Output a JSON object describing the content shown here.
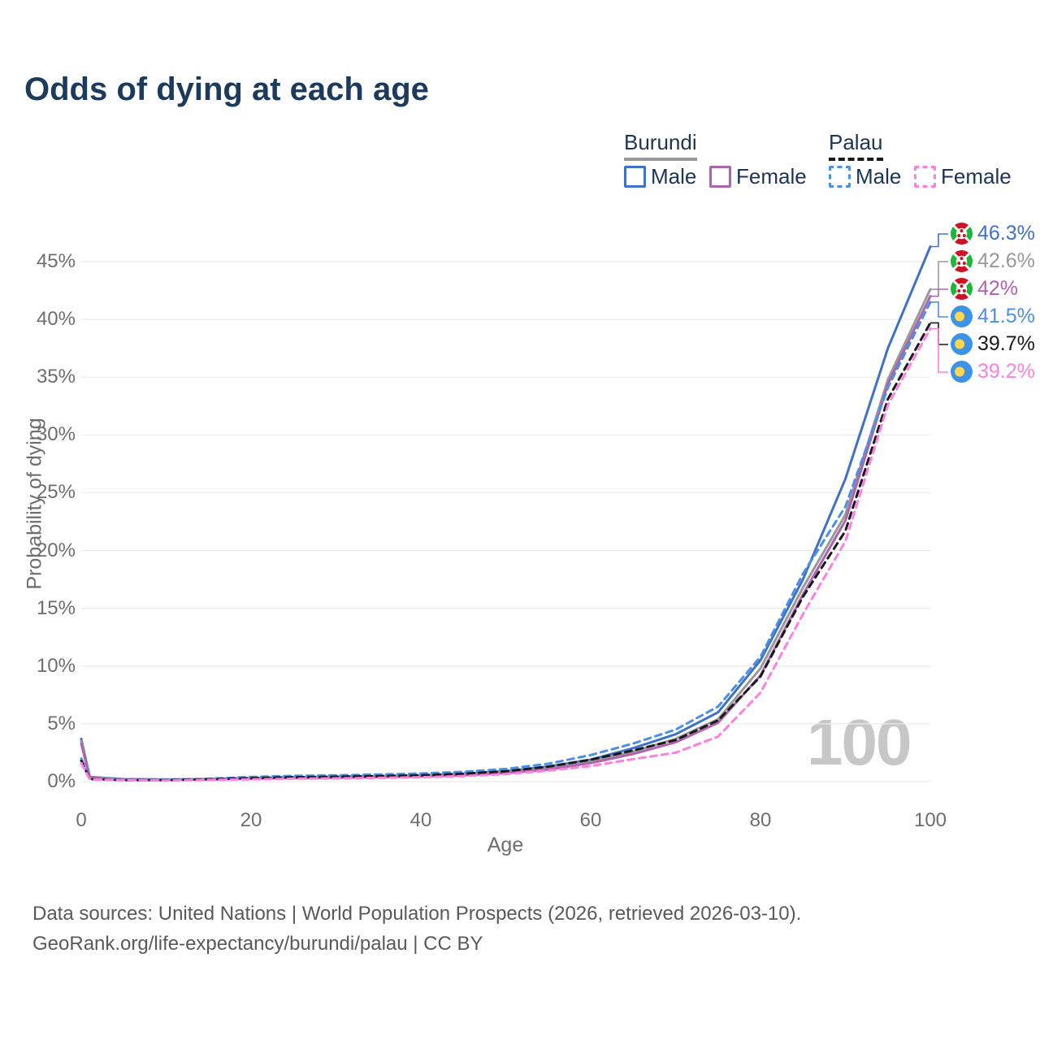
{
  "title": "Odds of dying at each age",
  "watermark": "100",
  "legend": {
    "groups": [
      {
        "name": "Burundi",
        "underline_style": "solid",
        "underline_color": "#999999",
        "items": [
          {
            "label": "Male",
            "color": "#3e72c8",
            "dashed": false
          },
          {
            "label": "Female",
            "color": "#af63af",
            "dashed": false
          }
        ]
      },
      {
        "name": "Palau",
        "underline_style": "dashed",
        "underline_color": "#1a1a1a",
        "items": [
          {
            "label": "Male",
            "color": "#4a90e8",
            "dashed": true
          },
          {
            "label": "Female",
            "color": "#ff7fe1",
            "dashed": true
          }
        ]
      }
    ]
  },
  "chart_data": {
    "type": "line",
    "title": "Odds of dying at each age",
    "xlabel": "Age",
    "ylabel": "Probability of dying",
    "x_ticks": [
      0,
      20,
      40,
      60,
      80,
      100
    ],
    "y_ticks": [
      "0%",
      "5%",
      "10%",
      "15%",
      "20%",
      "25%",
      "30%",
      "35%",
      "40%",
      "45%"
    ],
    "xlim": [
      0,
      100
    ],
    "ylim_percent": [
      0,
      47.6
    ],
    "grid": "horizontal",
    "legend_position": "top-right",
    "ages": [
      0,
      1,
      5,
      10,
      15,
      20,
      25,
      30,
      35,
      40,
      45,
      50,
      55,
      60,
      65,
      70,
      75,
      80,
      85,
      90,
      95,
      100
    ],
    "series": [
      {
        "name": "Burundi Male",
        "country": "Burundi",
        "sex": "Male",
        "flag": "burundi",
        "color": "#3e72c8",
        "dash": "solid",
        "end_label": "46.3%",
        "values": [
          3.7,
          0.4,
          0.22,
          0.18,
          0.22,
          0.3,
          0.38,
          0.43,
          0.48,
          0.55,
          0.68,
          0.9,
          1.3,
          1.9,
          2.9,
          4.1,
          6.0,
          10.5,
          17.5,
          26.2,
          37.5,
          46.3
        ]
      },
      {
        "name": "Burundi Both sexes",
        "country": "Burundi",
        "sex": "Both",
        "flag": "burundi",
        "color": "#999999",
        "dash": "solid",
        "end_label": "42.6%",
        "values": [
          3.5,
          0.35,
          0.2,
          0.16,
          0.2,
          0.27,
          0.34,
          0.38,
          0.43,
          0.5,
          0.6,
          0.82,
          1.15,
          1.75,
          2.6,
          3.7,
          5.4,
          9.8,
          16.8,
          23.1,
          34.8,
          42.6
        ]
      },
      {
        "name": "Burundi Female",
        "country": "Burundi",
        "sex": "Female",
        "flag": "burundi",
        "color": "#af63af",
        "dash": "solid",
        "end_label": "42%",
        "values": [
          3.3,
          0.3,
          0.18,
          0.15,
          0.18,
          0.25,
          0.3,
          0.34,
          0.38,
          0.45,
          0.55,
          0.75,
          1.05,
          1.6,
          2.4,
          3.4,
          5.1,
          9.2,
          16.2,
          22.6,
          34.4,
          42.0
        ]
      },
      {
        "name": "Palau Male",
        "country": "Palau",
        "sex": "Male",
        "flag": "palau",
        "color": "#4a90e8",
        "dash": "dashed",
        "end_label": "41.5%",
        "values": [
          2.0,
          0.25,
          0.15,
          0.15,
          0.25,
          0.4,
          0.5,
          0.55,
          0.62,
          0.7,
          0.85,
          1.1,
          1.55,
          2.3,
          3.3,
          4.5,
          6.5,
          10.8,
          18.0,
          23.8,
          34.1,
          41.5
        ]
      },
      {
        "name": "Palau Both sexes",
        "country": "Palau",
        "sex": "Both",
        "flag": "palau",
        "color": "#1a1a1a",
        "dash": "dashed",
        "end_label": "39.7%",
        "values": [
          1.8,
          0.22,
          0.13,
          0.13,
          0.2,
          0.3,
          0.38,
          0.42,
          0.48,
          0.55,
          0.68,
          0.9,
          1.3,
          1.9,
          2.7,
          3.6,
          5.3,
          9.1,
          16.0,
          21.7,
          33.1,
          39.7
        ]
      },
      {
        "name": "Palau Female",
        "country": "Palau",
        "sex": "Female",
        "flag": "palau",
        "color": "#ff7fe1",
        "dash": "dashed",
        "end_label": "39.2%",
        "values": [
          1.6,
          0.2,
          0.12,
          0.1,
          0.15,
          0.2,
          0.25,
          0.28,
          0.32,
          0.38,
          0.48,
          0.65,
          0.95,
          1.35,
          1.95,
          2.5,
          3.9,
          7.7,
          14.5,
          20.8,
          32.6,
          39.2
        ]
      }
    ],
    "flag_colors": {
      "burundi_red": "#ce1126",
      "burundi_green": "#1eb53a",
      "burundi_white": "#ffffff",
      "palau_blue": "#3e93e6",
      "palau_yellow": "#ffd64f"
    }
  },
  "footer": {
    "line1": "Data sources: United Nations | World Population Prospects (2026, retrieved 2026-03-10).",
    "line2": "GeoRank.org/life-expectancy/burundi/palau | CC BY"
  }
}
